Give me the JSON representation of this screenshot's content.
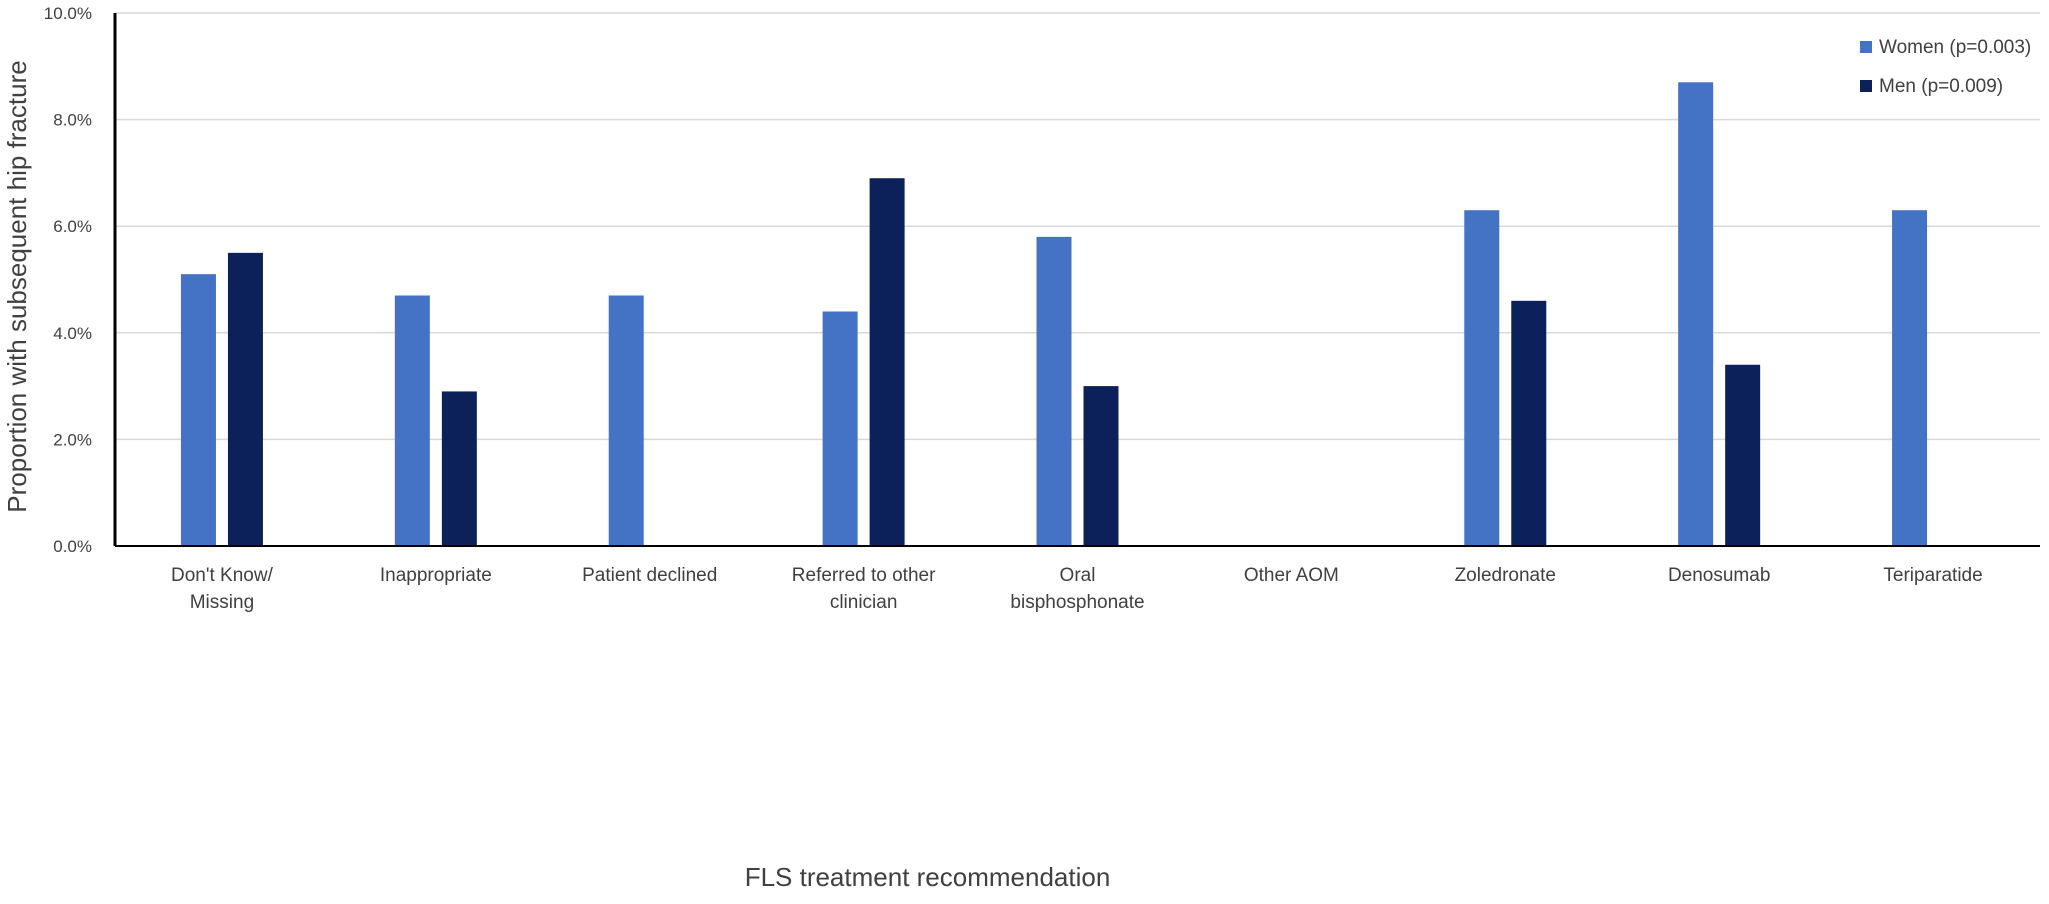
{
  "chart_data": {
    "type": "bar",
    "categories": [
      [
        "Don't Know/",
        "Missing"
      ],
      [
        "Inappropriate"
      ],
      [
        "Patient declined"
      ],
      [
        "Referred to other",
        "clinician"
      ],
      [
        "Oral",
        "bisphosphonate"
      ],
      [
        "Other AOM"
      ],
      [
        "Zoledronate"
      ],
      [
        "Denosumab"
      ],
      [
        "Teriparatide"
      ]
    ],
    "series": [
      {
        "name": "Women (p=0.003)",
        "color": "#4472C4",
        "values": [
          5.1,
          4.7,
          4.7,
          4.4,
          5.8,
          null,
          6.3,
          8.7,
          6.3
        ]
      },
      {
        "name": "Men (p=0.009)",
        "color": "#0C2159",
        "values": [
          5.5,
          2.9,
          null,
          6.9,
          3.0,
          null,
          4.6,
          3.4,
          null
        ]
      }
    ],
    "xlabel": "FLS treatment recommendation",
    "ylabel": "Proportion with subsequent hip fracture",
    "ylim": [
      0,
      10
    ],
    "yticks": [
      0,
      2,
      4,
      6,
      8,
      10
    ],
    "ytick_labels": [
      "0.0%",
      "2.0%",
      "4.0%",
      "6.0%",
      "8.0%",
      "10.0%"
    ],
    "grid": true,
    "legend_position": "top-right"
  }
}
